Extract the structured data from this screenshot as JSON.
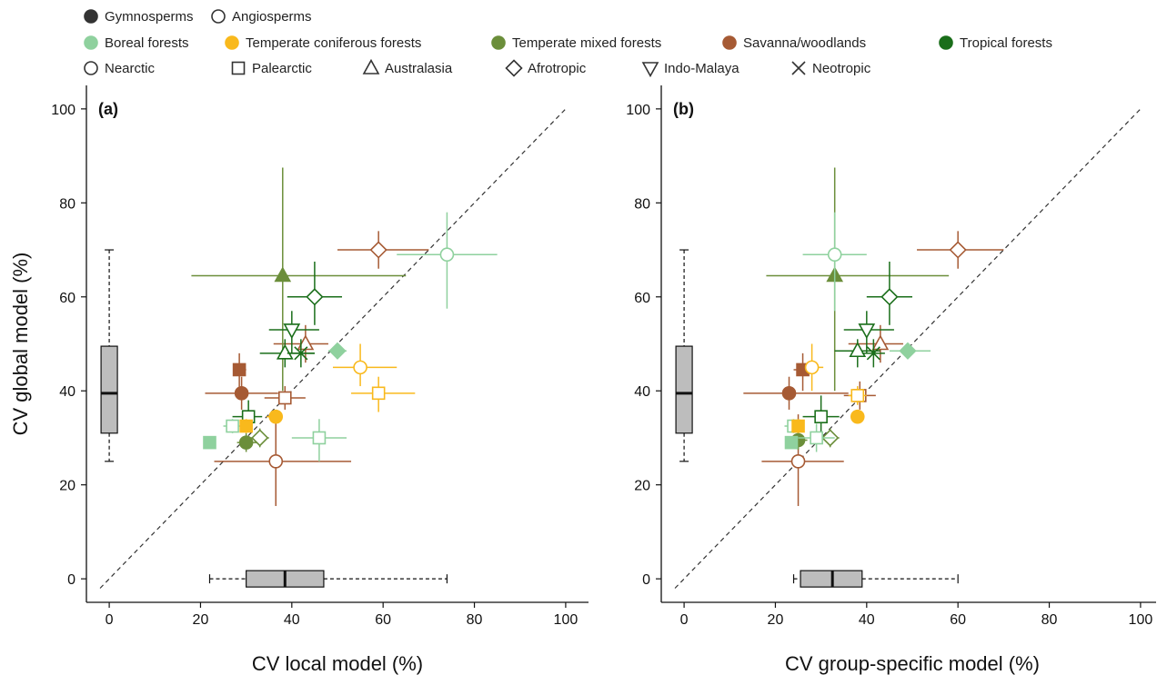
{
  "legend": {
    "taxon": [
      {
        "label": "Gymnosperms",
        "filled": true,
        "color": "#333333"
      },
      {
        "label": "Angiosperms",
        "filled": false,
        "color": "#333333"
      }
    ],
    "biome": [
      {
        "label": "Boreal forests",
        "color": "#8fd19e"
      },
      {
        "label": "Temperate coniferous forests",
        "color": "#f9b91c"
      },
      {
        "label": "Temperate mixed forests",
        "color": "#6b8e3a"
      },
      {
        "label": "Savanna/woodlands",
        "color": "#a65a34"
      },
      {
        "label": "Tropical forests",
        "color": "#1a6e1a"
      }
    ],
    "realm": [
      {
        "label": "Nearctic",
        "marker": "circle"
      },
      {
        "label": "Palearctic",
        "marker": "square"
      },
      {
        "label": "Australasia",
        "marker": "triangle-up"
      },
      {
        "label": "Afrotropic",
        "marker": "diamond"
      },
      {
        "label": "Indo-Malaya",
        "marker": "triangle-down"
      },
      {
        "label": "Neotropic",
        "marker": "cross"
      }
    ]
  },
  "chart_data": [
    {
      "type": "scatter",
      "panel_label": "(a)",
      "xlabel": "CV local model (%)",
      "ylabel": "CV global model (%)",
      "xlim": [
        -5,
        105
      ],
      "ylim": [
        -5,
        105
      ],
      "xticks": [
        "0",
        "20",
        "40",
        "60",
        "80",
        "100"
      ],
      "yticks": [
        "0",
        "20",
        "40",
        "60",
        "80",
        "100"
      ],
      "reference_line": "1:1",
      "boxplot_y": {
        "x": 0,
        "min": 25,
        "q1": 31,
        "median": 39.5,
        "q3": 49.5,
        "max": 70
      },
      "boxplot_x": {
        "y": 0,
        "min": 22,
        "q1": 30,
        "median": 38.5,
        "q3": 47,
        "max": 74
      },
      "points": [
        {
          "x": 29,
          "y": 39.5,
          "xerr": [
            21,
            37
          ],
          "yerr": [
            36,
            43
          ],
          "biome": "Savanna/woodlands",
          "marker": "circle",
          "filled": true
        },
        {
          "x": 36.5,
          "y": 25,
          "xerr": [
            23,
            53
          ],
          "yerr": [
            15.5,
            35
          ],
          "biome": "Savanna/woodlands",
          "marker": "circle",
          "filled": false
        },
        {
          "x": 28.5,
          "y": 44.5,
          "xerr": [
            27.5,
            30
          ],
          "yerr": [
            40,
            48
          ],
          "biome": "Savanna/woodlands",
          "marker": "square",
          "filled": true
        },
        {
          "x": 38.5,
          "y": 38.5,
          "xerr": [
            34,
            43
          ],
          "yerr": [
            36,
            41
          ],
          "biome": "Savanna/woodlands",
          "marker": "square",
          "filled": false
        },
        {
          "x": 43,
          "y": 50,
          "xerr": [
            36,
            48
          ],
          "yerr": [
            46,
            54
          ],
          "biome": "Savanna/woodlands",
          "marker": "triangle-up",
          "filled": false
        },
        {
          "x": 59,
          "y": 70,
          "xerr": [
            50,
            70
          ],
          "yerr": [
            66,
            74
          ],
          "biome": "Savanna/woodlands",
          "marker": "diamond",
          "filled": false
        },
        {
          "x": 38,
          "y": 64.5,
          "xerr": [
            18,
            65
          ],
          "yerr": [
            40,
            87.5
          ],
          "biome": "Temperate mixed forests",
          "marker": "triangle-up",
          "filled": true
        },
        {
          "x": 30,
          "y": 29,
          "xerr": [
            28,
            33
          ],
          "yerr": [
            27,
            31
          ],
          "biome": "Temperate mixed forests",
          "marker": "circle",
          "filled": true
        },
        {
          "x": 33,
          "y": 30,
          "xerr": [
            31,
            35
          ],
          "yerr": [
            28,
            32
          ],
          "biome": "Temperate mixed forests",
          "marker": "diamond",
          "filled": false
        },
        {
          "x": 45,
          "y": 60,
          "xerr": [
            39,
            51
          ],
          "yerr": [
            54,
            67.5
          ],
          "biome": "Tropical forests",
          "marker": "diamond",
          "filled": false
        },
        {
          "x": 40,
          "y": 53,
          "xerr": [
            35,
            46
          ],
          "yerr": [
            48,
            57
          ],
          "biome": "Tropical forests",
          "marker": "triangle-down",
          "filled": false
        },
        {
          "x": 38.5,
          "y": 48,
          "xerr": [
            33,
            45
          ],
          "yerr": [
            45,
            51
          ],
          "biome": "Tropical forests",
          "marker": "triangle-up",
          "filled": false
        },
        {
          "x": 42,
          "y": 48,
          "xerr": [
            39,
            45
          ],
          "yerr": [
            45,
            51
          ],
          "biome": "Tropical forests",
          "marker": "cross",
          "filled": false
        },
        {
          "x": 30.5,
          "y": 34.5,
          "xerr": [
            27,
            33.5
          ],
          "yerr": [
            32,
            38
          ],
          "biome": "Tropical forests",
          "marker": "square",
          "filled": false
        },
        {
          "x": 74,
          "y": 69,
          "xerr": [
            63,
            85
          ],
          "yerr": [
            57.5,
            78
          ],
          "biome": "Boreal forests",
          "marker": "circle",
          "filled": false
        },
        {
          "x": 50,
          "y": 48.5,
          "xerr": [
            48,
            52
          ],
          "yerr": [
            47,
            50
          ],
          "biome": "Boreal forests",
          "marker": "diamond",
          "filled": true
        },
        {
          "x": 22,
          "y": 29,
          "xerr": [
            21,
            23
          ],
          "yerr": [
            28,
            30
          ],
          "biome": "Boreal forests",
          "marker": "square",
          "filled": true
        },
        {
          "x": 46,
          "y": 30,
          "xerr": [
            40,
            52
          ],
          "yerr": [
            25,
            34
          ],
          "biome": "Boreal forests",
          "marker": "square",
          "filled": false
        },
        {
          "x": 27,
          "y": 32.5,
          "xerr": [
            25,
            29
          ],
          "yerr": [
            31,
            34
          ],
          "biome": "Boreal forests",
          "marker": "square",
          "filled": false
        },
        {
          "x": 55,
          "y": 45,
          "xerr": [
            49,
            63
          ],
          "yerr": [
            41,
            50
          ],
          "biome": "Temperate coniferous forests",
          "marker": "circle",
          "filled": false
        },
        {
          "x": 59,
          "y": 39.5,
          "xerr": [
            53,
            67
          ],
          "yerr": [
            35.5,
            43
          ],
          "biome": "Temperate coniferous forests",
          "marker": "square",
          "filled": false
        },
        {
          "x": 36.5,
          "y": 34.5,
          "xerr": [
            34.5,
            38
          ],
          "yerr": [
            33,
            36
          ],
          "biome": "Temperate coniferous forests",
          "marker": "circle",
          "filled": true
        },
        {
          "x": 30,
          "y": 32.5,
          "xerr": [
            29,
            31
          ],
          "yerr": [
            31,
            34
          ],
          "biome": "Temperate coniferous forests",
          "marker": "square",
          "filled": true
        }
      ]
    },
    {
      "type": "scatter",
      "panel_label": "(b)",
      "xlabel": "CV group-specific model (%)",
      "ylabel": "",
      "xlim": [
        -5,
        105
      ],
      "ylim": [
        -5,
        105
      ],
      "xticks": [
        "0",
        "20",
        "40",
        "60",
        "80",
        "100"
      ],
      "yticks": [
        "0",
        "20",
        "40",
        "60",
        "80",
        "100"
      ],
      "reference_line": "1:1",
      "boxplot_y": {
        "x": 0,
        "min": 25,
        "q1": 31,
        "median": 39.5,
        "q3": 49.5,
        "max": 70
      },
      "boxplot_x": {
        "y": 0,
        "min": 24,
        "q1": 25.5,
        "median": 32.5,
        "q3": 39,
        "max": 60
      },
      "points": [
        {
          "x": 23,
          "y": 39.5,
          "xerr": [
            13,
            36
          ],
          "yerr": [
            36,
            43
          ],
          "biome": "Savanna/woodlands",
          "marker": "circle",
          "filled": true
        },
        {
          "x": 25,
          "y": 25,
          "xerr": [
            17,
            35
          ],
          "yerr": [
            15.5,
            35
          ],
          "biome": "Savanna/woodlands",
          "marker": "circle",
          "filled": false
        },
        {
          "x": 26,
          "y": 44.5,
          "xerr": [
            24,
            28
          ],
          "yerr": [
            40,
            48
          ],
          "biome": "Savanna/woodlands",
          "marker": "square",
          "filled": true
        },
        {
          "x": 38.5,
          "y": 39,
          "xerr": [
            35,
            42
          ],
          "yerr": [
            36,
            42
          ],
          "biome": "Savanna/woodlands",
          "marker": "square",
          "filled": false
        },
        {
          "x": 43,
          "y": 50,
          "xerr": [
            36,
            48
          ],
          "yerr": [
            46,
            54
          ],
          "biome": "Savanna/woodlands",
          "marker": "triangle-up",
          "filled": false
        },
        {
          "x": 60,
          "y": 70,
          "xerr": [
            51,
            70
          ],
          "yerr": [
            66,
            74
          ],
          "biome": "Savanna/woodlands",
          "marker": "diamond",
          "filled": false
        },
        {
          "x": 33,
          "y": 64.5,
          "xerr": [
            18,
            58
          ],
          "yerr": [
            40,
            87.5
          ],
          "biome": "Temperate mixed forests",
          "marker": "triangle-up",
          "filled": true
        },
        {
          "x": 25,
          "y": 29.5,
          "xerr": [
            23.5,
            27
          ],
          "yerr": [
            27.5,
            31.5
          ],
          "biome": "Temperate mixed forests",
          "marker": "circle",
          "filled": true
        },
        {
          "x": 32,
          "y": 30,
          "xerr": [
            30,
            34
          ],
          "yerr": [
            28,
            32
          ],
          "biome": "Temperate mixed forests",
          "marker": "diamond",
          "filled": false
        },
        {
          "x": 45,
          "y": 60,
          "xerr": [
            40,
            50
          ],
          "yerr": [
            54,
            67.5
          ],
          "biome": "Tropical forests",
          "marker": "diamond",
          "filled": false
        },
        {
          "x": 40,
          "y": 53,
          "xerr": [
            35,
            46
          ],
          "yerr": [
            48,
            57
          ],
          "biome": "Tropical forests",
          "marker": "triangle-down",
          "filled": false
        },
        {
          "x": 38,
          "y": 48.5,
          "xerr": [
            33,
            43
          ],
          "yerr": [
            45,
            51
          ],
          "biome": "Tropical forests",
          "marker": "triangle-up",
          "filled": false
        },
        {
          "x": 41.5,
          "y": 48,
          "xerr": [
            39,
            44
          ],
          "yerr": [
            45,
            51
          ],
          "biome": "Tropical forests",
          "marker": "cross",
          "filled": false
        },
        {
          "x": 30,
          "y": 34.5,
          "xerr": [
            26,
            34
          ],
          "yerr": [
            31,
            39
          ],
          "biome": "Tropical forests",
          "marker": "square",
          "filled": false
        },
        {
          "x": 33,
          "y": 69,
          "xerr": [
            26,
            40
          ],
          "yerr": [
            57,
            78
          ],
          "biome": "Boreal forests",
          "marker": "circle",
          "filled": false
        },
        {
          "x": 49,
          "y": 48.5,
          "xerr": [
            45,
            54
          ],
          "yerr": [
            47,
            50
          ],
          "biome": "Boreal forests",
          "marker": "diamond",
          "filled": true
        },
        {
          "x": 23.5,
          "y": 29,
          "xerr": [
            22.5,
            24.5
          ],
          "yerr": [
            28,
            30
          ],
          "biome": "Boreal forests",
          "marker": "square",
          "filled": true
        },
        {
          "x": 29,
          "y": 30,
          "xerr": [
            25,
            33
          ],
          "yerr": [
            27,
            33
          ],
          "biome": "Boreal forests",
          "marker": "square",
          "filled": false
        },
        {
          "x": 24,
          "y": 32.5,
          "xerr": [
            22,
            26
          ],
          "yerr": [
            31,
            34
          ],
          "biome": "Boreal forests",
          "marker": "square",
          "filled": false
        },
        {
          "x": 28,
          "y": 45,
          "xerr": [
            26.5,
            30.5
          ],
          "yerr": [
            40,
            50
          ],
          "biome": "Temperate coniferous forests",
          "marker": "circle",
          "filled": false
        },
        {
          "x": 38,
          "y": 39,
          "xerr": [
            36,
            40
          ],
          "yerr": [
            37,
            41
          ],
          "biome": "Temperate coniferous forests",
          "marker": "square",
          "filled": false
        },
        {
          "x": 38,
          "y": 34.5,
          "xerr": [
            37,
            39
          ],
          "yerr": [
            33,
            36
          ],
          "biome": "Temperate coniferous forests",
          "marker": "circle",
          "filled": true
        },
        {
          "x": 25,
          "y": 32.5,
          "xerr": [
            24,
            26
          ],
          "yerr": [
            31,
            34
          ],
          "biome": "Temperate coniferous forests",
          "marker": "square",
          "filled": true
        }
      ]
    }
  ]
}
